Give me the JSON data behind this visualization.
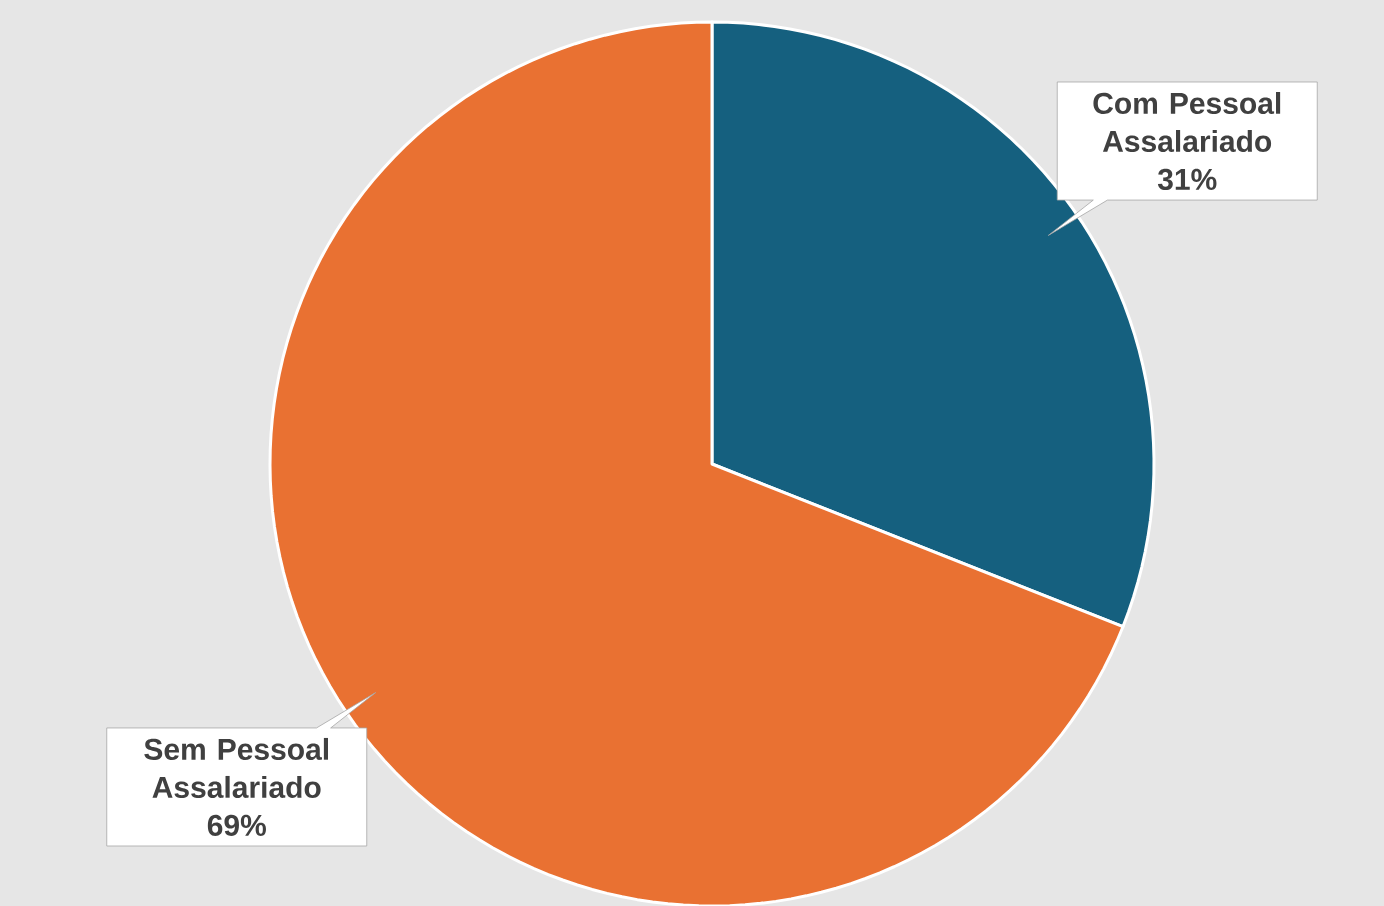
{
  "chart_data": {
    "type": "pie",
    "categories": [
      "Com Pessoal Assalariado",
      "Sem Pessoal Assalariado"
    ],
    "values": [
      31,
      69
    ],
    "colors": [
      "#15607f",
      "#e97132"
    ],
    "value_labels": [
      "31%",
      "69%"
    ]
  }
}
